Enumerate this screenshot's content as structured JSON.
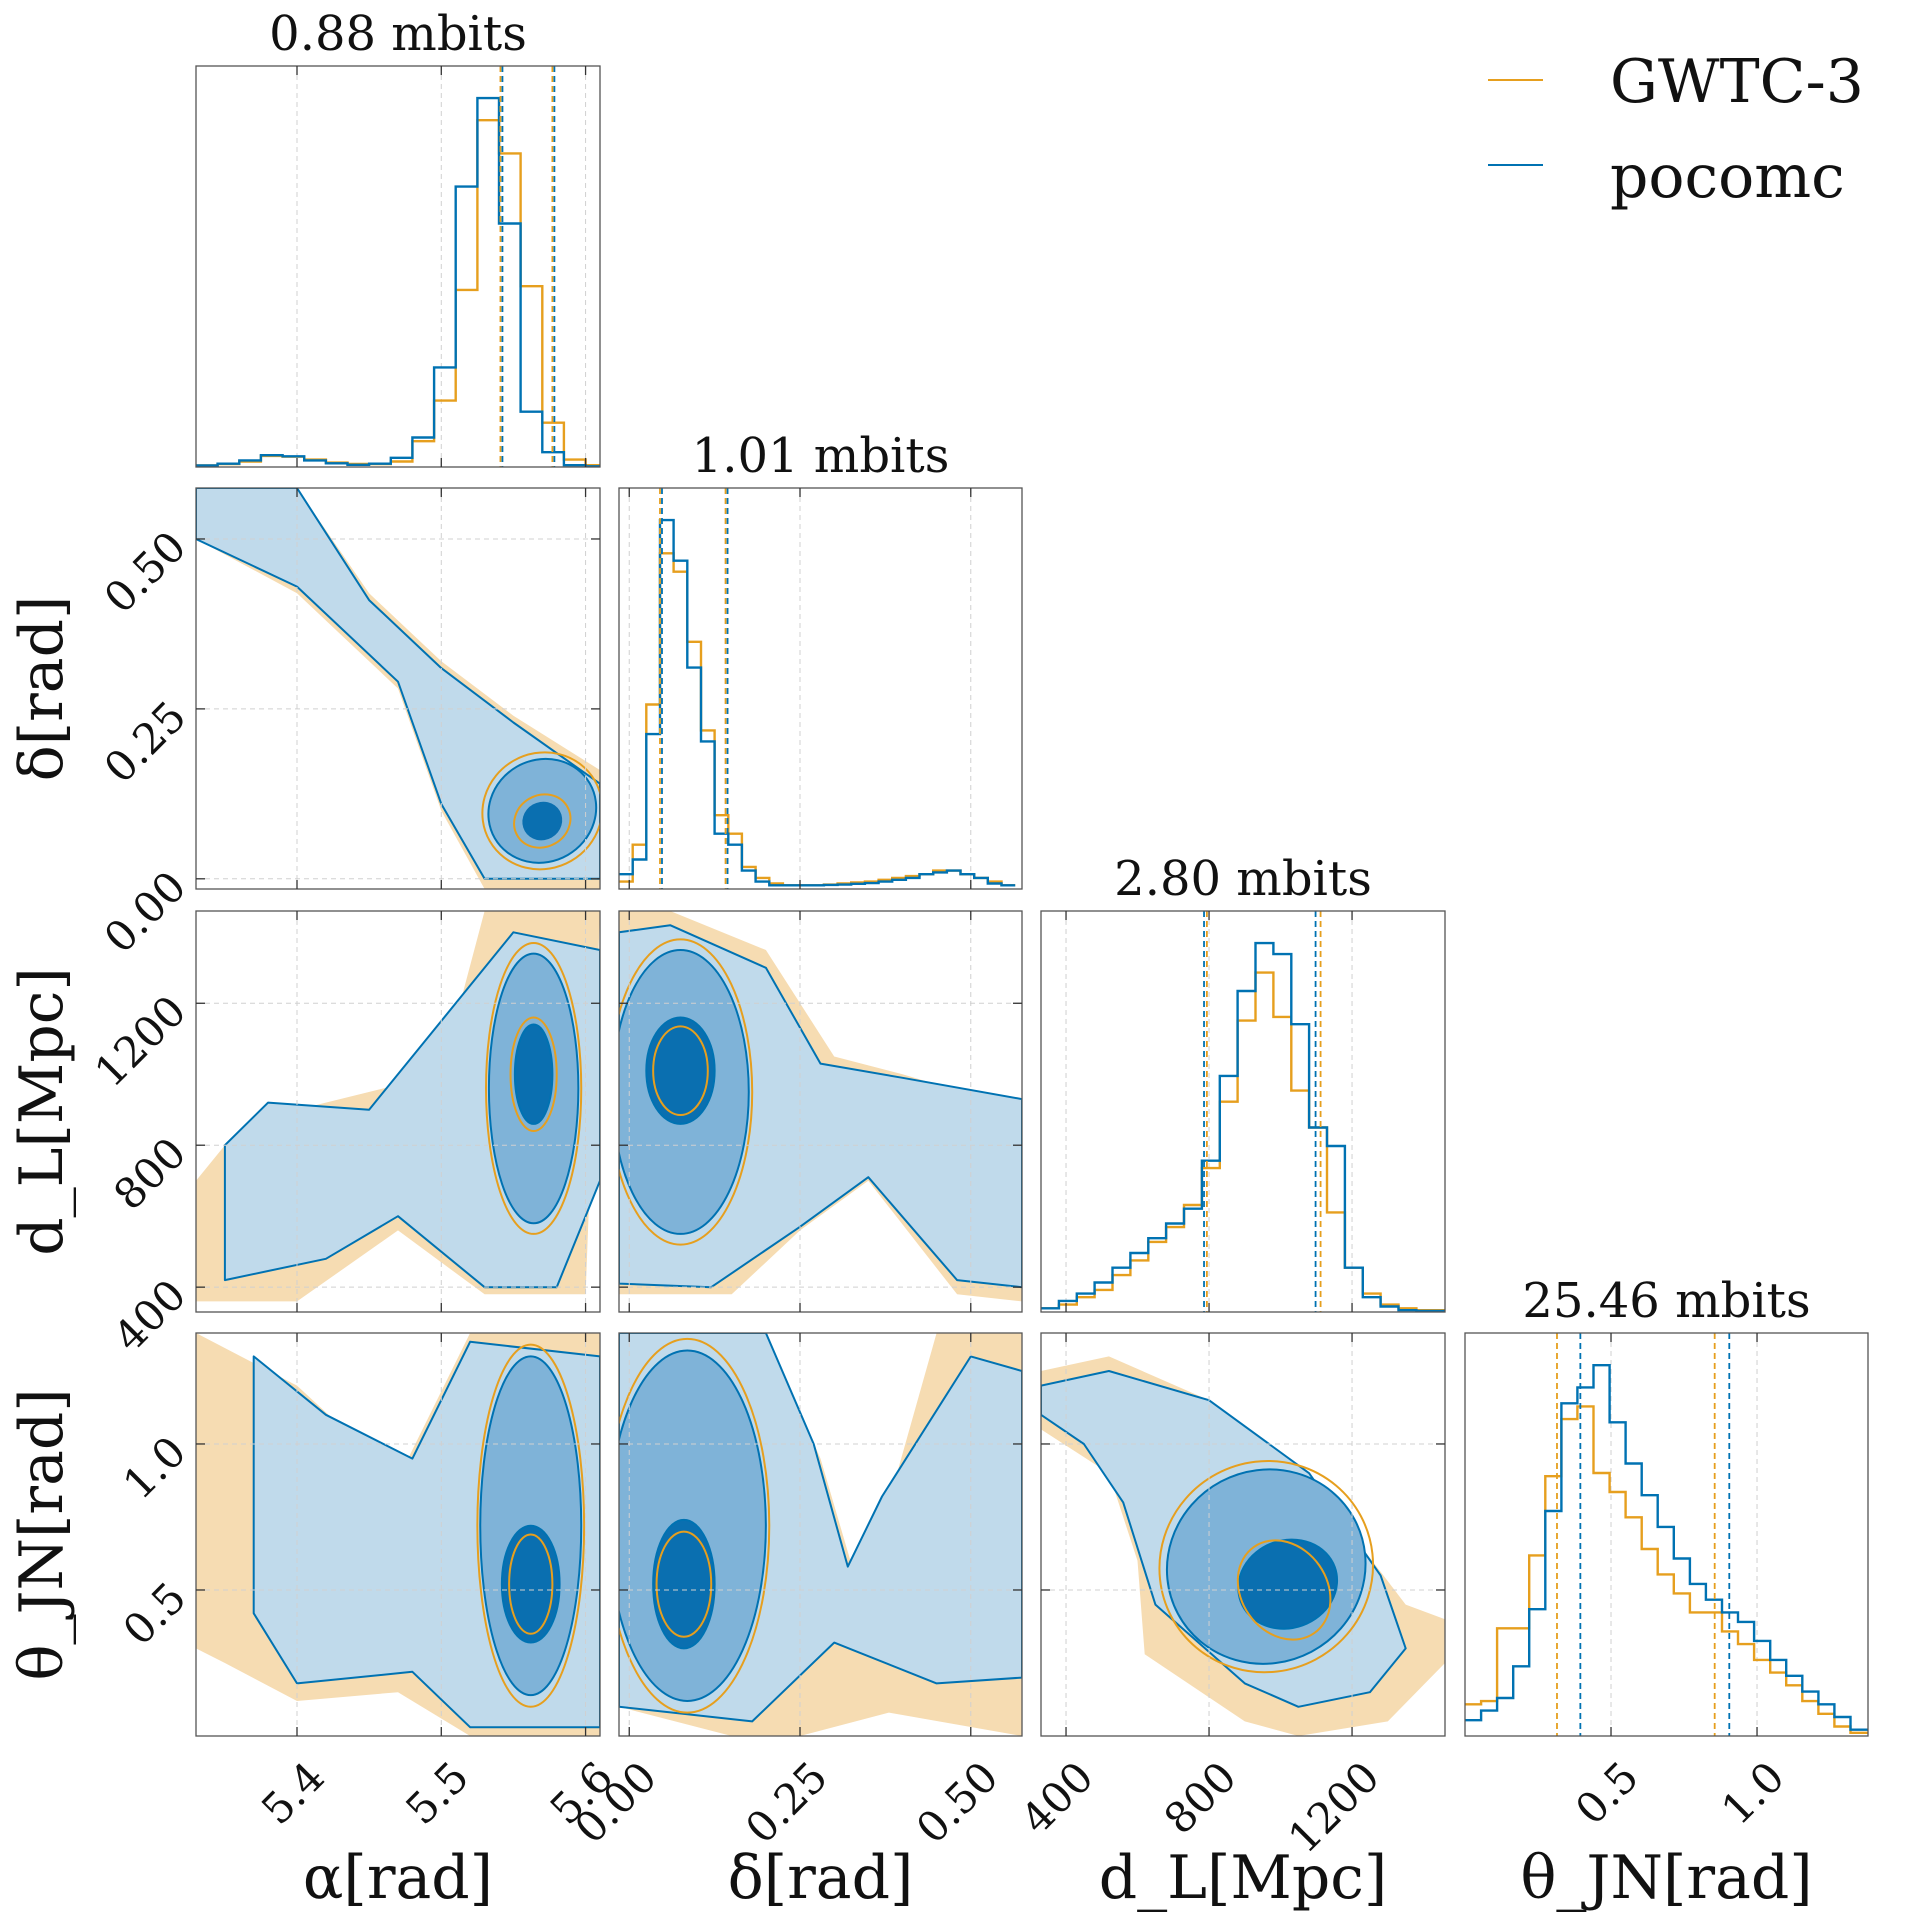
{
  "chart_data": {
    "type": "corner",
    "series": [
      {
        "name": "GWTC-3",
        "color": "#e69f1e"
      },
      {
        "name": "pocomc",
        "color": "#0072b2"
      }
    ],
    "parameters": [
      {
        "key": "alpha",
        "axis_label": "α[rad]",
        "range": [
          5.33,
          5.61
        ],
        "ticks": [
          5.4,
          5.5,
          5.6
        ],
        "tick_labels": [
          "5.4",
          "5.5",
          "5.6"
        ]
      },
      {
        "key": "delta",
        "axis_label": "δ[rad]",
        "range": [
          -0.015,
          0.575
        ],
        "ticks": [
          0.0,
          0.25,
          0.5
        ],
        "tick_labels": [
          "0.00",
          "0.25",
          "0.50"
        ]
      },
      {
        "key": "dL",
        "axis_label": "d_L[Mpc]",
        "range": [
          330,
          1460
        ],
        "ticks": [
          400,
          800,
          1200
        ],
        "tick_labels": [
          "400",
          "800",
          "1200"
        ]
      },
      {
        "key": "thetaJN",
        "axis_label": "θ_JN[rad]",
        "range": [
          0.0,
          1.38
        ],
        "ticks": [
          0.5,
          1.0
        ],
        "tick_labels": [
          "0.5",
          "1.0"
        ]
      }
    ],
    "diagonal": [
      {
        "title": "0.88 mbits",
        "bins": [
          5.33,
          5.345,
          5.36,
          5.375,
          5.39,
          5.405,
          5.42,
          5.435,
          5.45,
          5.465,
          5.48,
          5.495,
          5.51,
          5.525,
          5.54,
          5.555,
          5.57,
          5.585,
          5.6,
          5.61
        ],
        "GWTC-3": [
          0.4,
          0.8,
          1.5,
          3.0,
          2.8,
          2.0,
          1.2,
          0.8,
          0.8,
          1.5,
          7,
          18,
          48,
          94,
          85,
          49,
          12,
          2,
          0.5
        ],
        "pocomc": [
          0.4,
          0.9,
          1.8,
          3.2,
          2.9,
          1.8,
          1.0,
          0.6,
          0.9,
          2.5,
          8,
          27,
          76,
          100,
          66,
          15,
          4,
          0.5,
          0.2
        ],
        "quantiles_GWTC-3": [
          5.541,
          5.577
        ],
        "quantiles_pocomc": [
          5.541,
          5.577
        ]
      },
      {
        "title": "1.01 mbits",
        "bins": [
          -0.015,
          0.005,
          0.025,
          0.045,
          0.065,
          0.085,
          0.105,
          0.125,
          0.145,
          0.165,
          0.185,
          0.205,
          0.225,
          0.245,
          0.265,
          0.285,
          0.305,
          0.325,
          0.345,
          0.365,
          0.385,
          0.405,
          0.425,
          0.445,
          0.465,
          0.485,
          0.505,
          0.525,
          0.545,
          0.565,
          0.575
        ],
        "GWTC-3": [
          2,
          12,
          50,
          91,
          86,
          67,
          43,
          20,
          15,
          6,
          3,
          1.5,
          1,
          1,
          1,
          1.2,
          1.5,
          1.8,
          2,
          2.5,
          3,
          3.5,
          4,
          5,
          5,
          4,
          3,
          2,
          1
        ],
        "pocomc": [
          4,
          8,
          42,
          100,
          89,
          60,
          40,
          15,
          12,
          5,
          2,
          1,
          1,
          1,
          1,
          1.1,
          1.2,
          1.4,
          1.6,
          2,
          2.5,
          3,
          4,
          4.5,
          5,
          4,
          3,
          1.5,
          1
        ],
        "quantiles_GWTC-3": [
          0.045,
          0.141
        ],
        "quantiles_pocomc": [
          0.045,
          0.141
        ]
      },
      {
        "title": "2.80 mbits",
        "bins": [
          330,
          380,
          430,
          480,
          530,
          580,
          630,
          680,
          730,
          780,
          830,
          880,
          930,
          980,
          1030,
          1080,
          1130,
          1180,
          1230,
          1280,
          1330,
          1380,
          1460
        ],
        "GWTC-3": [
          1,
          2,
          4,
          6,
          10,
          14,
          19,
          23,
          29,
          39,
          57,
          79,
          92,
          80,
          60,
          50,
          27,
          12,
          5,
          2,
          1,
          0.5
        ],
        "pocomc": [
          1,
          3,
          5,
          8,
          12,
          16,
          20,
          24,
          28,
          41,
          64,
          87,
          100,
          97,
          78,
          50,
          45,
          12,
          4,
          1.5,
          0.5,
          0.3
        ],
        "quantiles_GWTC-3": [
          794,
          1112
        ],
        "quantiles_pocomc": [
          786,
          1098
        ]
      },
      {
        "title": "25.46 mbits",
        "bins": [
          0.0,
          0.055,
          0.11,
          0.165,
          0.22,
          0.275,
          0.33,
          0.385,
          0.44,
          0.495,
          0.55,
          0.605,
          0.66,
          0.715,
          0.77,
          0.825,
          0.88,
          0.935,
          0.99,
          1.045,
          1.1,
          1.155,
          1.21,
          1.265,
          1.32,
          1.38
        ],
        "GWTC-3": [
          10,
          11,
          34,
          34,
          57,
          82,
          100,
          104,
          83,
          77,
          69,
          59,
          51,
          45,
          39,
          39,
          33,
          29,
          24,
          20,
          16,
          11,
          7,
          3,
          1
        ],
        "pocomc": [
          5,
          8,
          12,
          22,
          40,
          71,
          105,
          110,
          117,
          99,
          86,
          76,
          66,
          56,
          48,
          43,
          39,
          36,
          30,
          24,
          19,
          14,
          10,
          6,
          2
        ],
        "quantiles_GWTC-3": [
          0.315,
          0.855
        ],
        "quantiles_pocomc": [
          0.395,
          0.905
        ]
      }
    ],
    "credible_levels": [
      "1σ",
      "2σ",
      "3σ"
    ],
    "legend_position": "top-right",
    "grid": true
  },
  "legend": {
    "entries": [
      "GWTC-3",
      "pocomc"
    ]
  }
}
